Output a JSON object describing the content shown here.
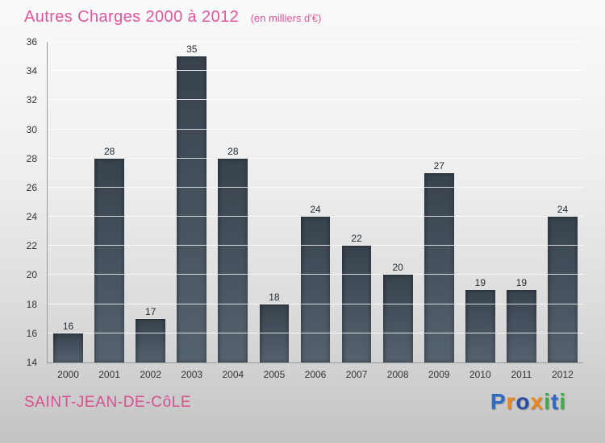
{
  "header": {
    "title": "Autres Charges 2000 à 2012",
    "subtitle": "(en milliers d'€)"
  },
  "footer": {
    "location": "SAINT-JEAN-DE-CôLE",
    "brand_letters": [
      {
        "ch": "P",
        "color": "#2f6bc4"
      },
      {
        "ch": "r",
        "color": "#f08519"
      },
      {
        "ch": "o",
        "color": "#2a4fa2"
      },
      {
        "ch": "x",
        "color": "#f08519"
      },
      {
        "ch": "i",
        "color": "#3fae49"
      },
      {
        "ch": "t",
        "color": "#2f6bc4"
      },
      {
        "ch": "i",
        "color": "#3fae49"
      }
    ]
  },
  "colors": {
    "title_pink": "#e2569c",
    "location_pink": "#d6508f",
    "bar_dark": "#38424d",
    "bar_light": "#55636f",
    "background_top": "#fafafa",
    "background_bottom": "#c3c3c3",
    "gridline": "#ffffff",
    "axis": "#9a9a9a"
  },
  "chart_data": {
    "type": "bar",
    "title": "Autres Charges 2000 à 2012",
    "subtitle": "(en milliers d'€)",
    "categories": [
      "2000",
      "2001",
      "2002",
      "2003",
      "2004",
      "2005",
      "2006",
      "2007",
      "2008",
      "2009",
      "2010",
      "2011",
      "2012"
    ],
    "values": [
      16,
      28,
      17,
      35,
      28,
      18,
      24,
      22,
      20,
      27,
      19,
      19,
      24
    ],
    "xlabel": "",
    "ylabel": "",
    "ylim": [
      14,
      36
    ],
    "ytick_step": 2,
    "grid": true,
    "legend": false
  }
}
